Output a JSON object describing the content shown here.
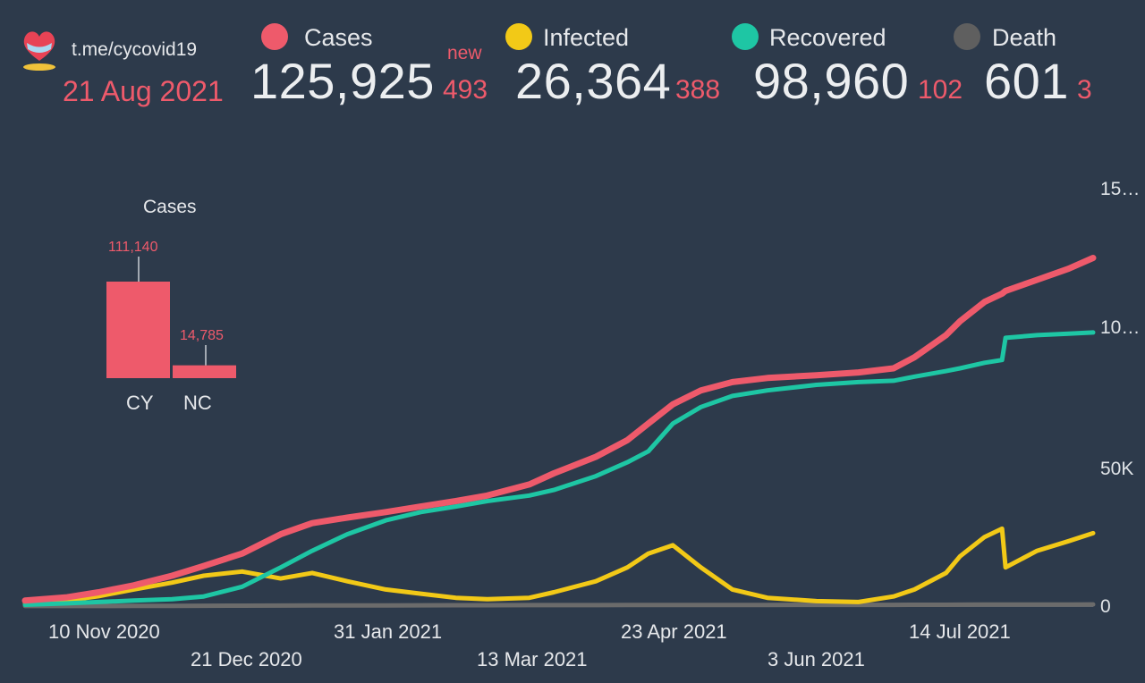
{
  "header": {
    "url": "t.me/cycovid19",
    "date": "21 Aug 2021",
    "logo_icon": "heart-mask-logo-icon",
    "new_label": "new"
  },
  "stats": [
    {
      "key": "cases",
      "label": "Cases",
      "value": "125,925",
      "delta": "493",
      "color": "#ee5a6b"
    },
    {
      "key": "infected",
      "label": "Infected",
      "value": "26,364",
      "delta": "388",
      "color": "#f2c917"
    },
    {
      "key": "recovered",
      "label": "Recovered",
      "value": "98,960",
      "delta": "102",
      "color": "#1ec6a4"
    },
    {
      "key": "death",
      "label": "Death",
      "value": "601",
      "delta": "3",
      "color": "#6b6b6b"
    }
  ],
  "mini_chart": {
    "title": "Cases",
    "bars": [
      {
        "label": "CY",
        "value": 111140,
        "text": "111,140"
      },
      {
        "label": "NC",
        "value": 14785,
        "text": "14,785"
      }
    ],
    "color": "#ee5a6b"
  },
  "chart_data": {
    "type": "line",
    "xlabel": "",
    "ylabel": "",
    "x_ticks": [
      "10 Nov 2020",
      "21 Dec 2020",
      "31 Jan 2021",
      "13 Mar 2021",
      "23 Apr 2021",
      "3 Jun 2021",
      "14 Jul 2021"
    ],
    "y_ticks": [
      "0",
      "50K",
      "10…",
      "15…"
    ],
    "ylim": [
      0,
      150000
    ],
    "x": [
      "2020-10-20",
      "2020-11-01",
      "2020-11-10",
      "2020-11-20",
      "2020-12-01",
      "2020-12-10",
      "2020-12-21",
      "2021-01-01",
      "2021-01-10",
      "2021-01-20",
      "2021-01-31",
      "2021-02-10",
      "2021-02-20",
      "2021-03-01",
      "2021-03-13",
      "2021-03-20",
      "2021-04-01",
      "2021-04-10",
      "2021-04-16",
      "2021-04-23",
      "2021-05-01",
      "2021-05-10",
      "2021-05-20",
      "2021-06-03",
      "2021-06-15",
      "2021-06-25",
      "2021-07-01",
      "2021-07-10",
      "2021-07-14",
      "2021-07-21",
      "2021-07-26",
      "2021-07-27",
      "2021-08-05",
      "2021-08-14",
      "2021-08-21"
    ],
    "series": [
      {
        "name": "Cases",
        "color": "#ee5a6b",
        "values": [
          2000,
          3200,
          5000,
          7500,
          11000,
          14500,
          19000,
          26000,
          30000,
          32000,
          34000,
          36000,
          38000,
          40000,
          44000,
          48000,
          54000,
          60000,
          66000,
          73000,
          78000,
          81000,
          82500,
          83500,
          84500,
          86000,
          90000,
          98000,
          103000,
          110000,
          113000,
          114000,
          118000,
          122000,
          125925
        ]
      },
      {
        "name": "Infected",
        "color": "#f2c917",
        "values": [
          1000,
          2000,
          3600,
          6000,
          8500,
          11000,
          12500,
          10000,
          12000,
          9000,
          6000,
          4500,
          3000,
          2500,
          3000,
          5000,
          9000,
          14000,
          19000,
          22000,
          14000,
          6000,
          3000,
          1800,
          1500,
          3500,
          6000,
          12000,
          18000,
          25000,
          28000,
          14000,
          20000,
          23500,
          26364
        ]
      },
      {
        "name": "Recovered",
        "color": "#1ec6a4",
        "values": [
          500,
          1000,
          1500,
          2000,
          2500,
          3500,
          7000,
          14000,
          20000,
          26000,
          31000,
          34000,
          36000,
          38000,
          40000,
          42000,
          47000,
          52000,
          56000,
          66000,
          72000,
          76000,
          78000,
          80000,
          81000,
          81500,
          83000,
          85000,
          86000,
          88000,
          89000,
          97000,
          98000,
          98500,
          98960
        ]
      },
      {
        "name": "Death",
        "color": "#6b6b6b",
        "values": [
          20,
          30,
          40,
          60,
          90,
          120,
          160,
          200,
          230,
          250,
          270,
          290,
          310,
          330,
          350,
          360,
          370,
          380,
          390,
          400,
          410,
          420,
          430,
          440,
          450,
          460,
          470,
          500,
          520,
          540,
          550,
          560,
          580,
          595,
          601
        ]
      }
    ]
  }
}
